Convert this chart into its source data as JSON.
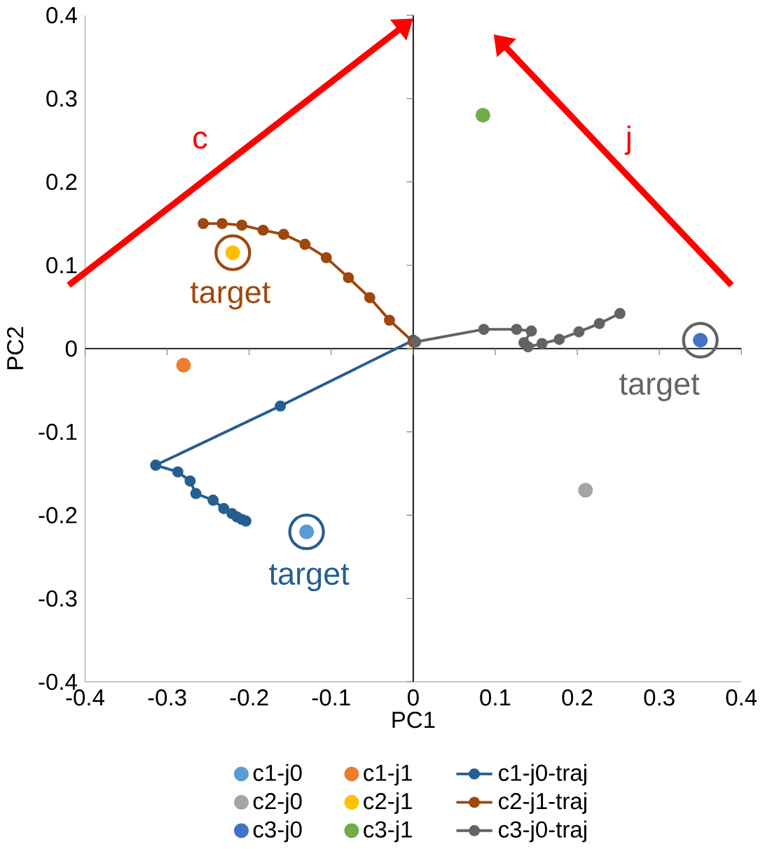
{
  "chart_data": {
    "type": "scatter",
    "xlabel": "PC1",
    "ylabel": "PC2",
    "xlim": [
      -0.4,
      0.4
    ],
    "ylim": [
      -0.4,
      0.4
    ],
    "xticks": [
      -0.4,
      -0.3,
      -0.2,
      -0.1,
      0,
      0.1,
      0.2,
      0.3,
      0.4
    ],
    "yticks": [
      -0.4,
      -0.3,
      -0.2,
      -0.1,
      0,
      0.1,
      0.2,
      0.3,
      0.4
    ],
    "legend": "bottom",
    "marker": "circle",
    "series": [
      {
        "name": "c1-j0",
        "color": "#5b9bd5",
        "x": [
          -0.13
        ],
        "values": [
          -0.22
        ]
      },
      {
        "name": "c2-j0",
        "color": "#a5a5a5",
        "x": [
          0.21
        ],
        "values": [
          -0.17
        ]
      },
      {
        "name": "c3-j0",
        "color": "#4472c4",
        "x": [
          0.35
        ],
        "values": [
          0.01
        ]
      },
      {
        "name": "c1-j1",
        "color": "#ed7d31",
        "x": [
          -0.28
        ],
        "values": [
          -0.02
        ]
      },
      {
        "name": "c2-j1",
        "color": "#ffc000",
        "x": [
          -0.22
        ],
        "values": [
          0.115
        ]
      },
      {
        "name": "c3-j1",
        "color": "#70ad47",
        "x": [
          0.085
        ],
        "values": [
          0.28
        ]
      },
      {
        "name": "c1-j0-traj",
        "type": "line",
        "color": "#255e91",
        "x": [
          0.0,
          -0.162,
          -0.314,
          -0.287,
          -0.272,
          -0.265,
          -0.244,
          -0.231,
          -0.221,
          -0.215,
          -0.209,
          -0.204
        ],
        "values": [
          0.01,
          -0.069,
          -0.14,
          -0.148,
          -0.159,
          -0.174,
          -0.182,
          -0.192,
          -0.198,
          -0.202,
          -0.205,
          -0.207
        ]
      },
      {
        "name": "c2-j1-traj",
        "type": "line",
        "color": "#9e480e",
        "x": [
          -0.256,
          -0.233,
          -0.209,
          -0.183,
          -0.158,
          -0.132,
          -0.106,
          -0.079,
          -0.053,
          -0.029,
          0.0
        ],
        "values": [
          0.15,
          0.15,
          0.148,
          0.142,
          0.137,
          0.125,
          0.109,
          0.085,
          0.061,
          0.034,
          0.008
        ]
      },
      {
        "name": "c3-j0-traj",
        "type": "line",
        "color": "#636363",
        "x": [
          0.003,
          0.086,
          0.126,
          0.144,
          0.135,
          0.14,
          0.157,
          0.178,
          0.202,
          0.227,
          0.252
        ],
        "values": [
          0.008,
          0.023,
          0.023,
          0.021,
          0.007,
          0.002,
          0.006,
          0.011,
          0.02,
          0.03,
          0.042
        ]
      }
    ],
    "annotations": [
      "c",
      "j",
      "target",
      "target",
      "target"
    ]
  }
}
